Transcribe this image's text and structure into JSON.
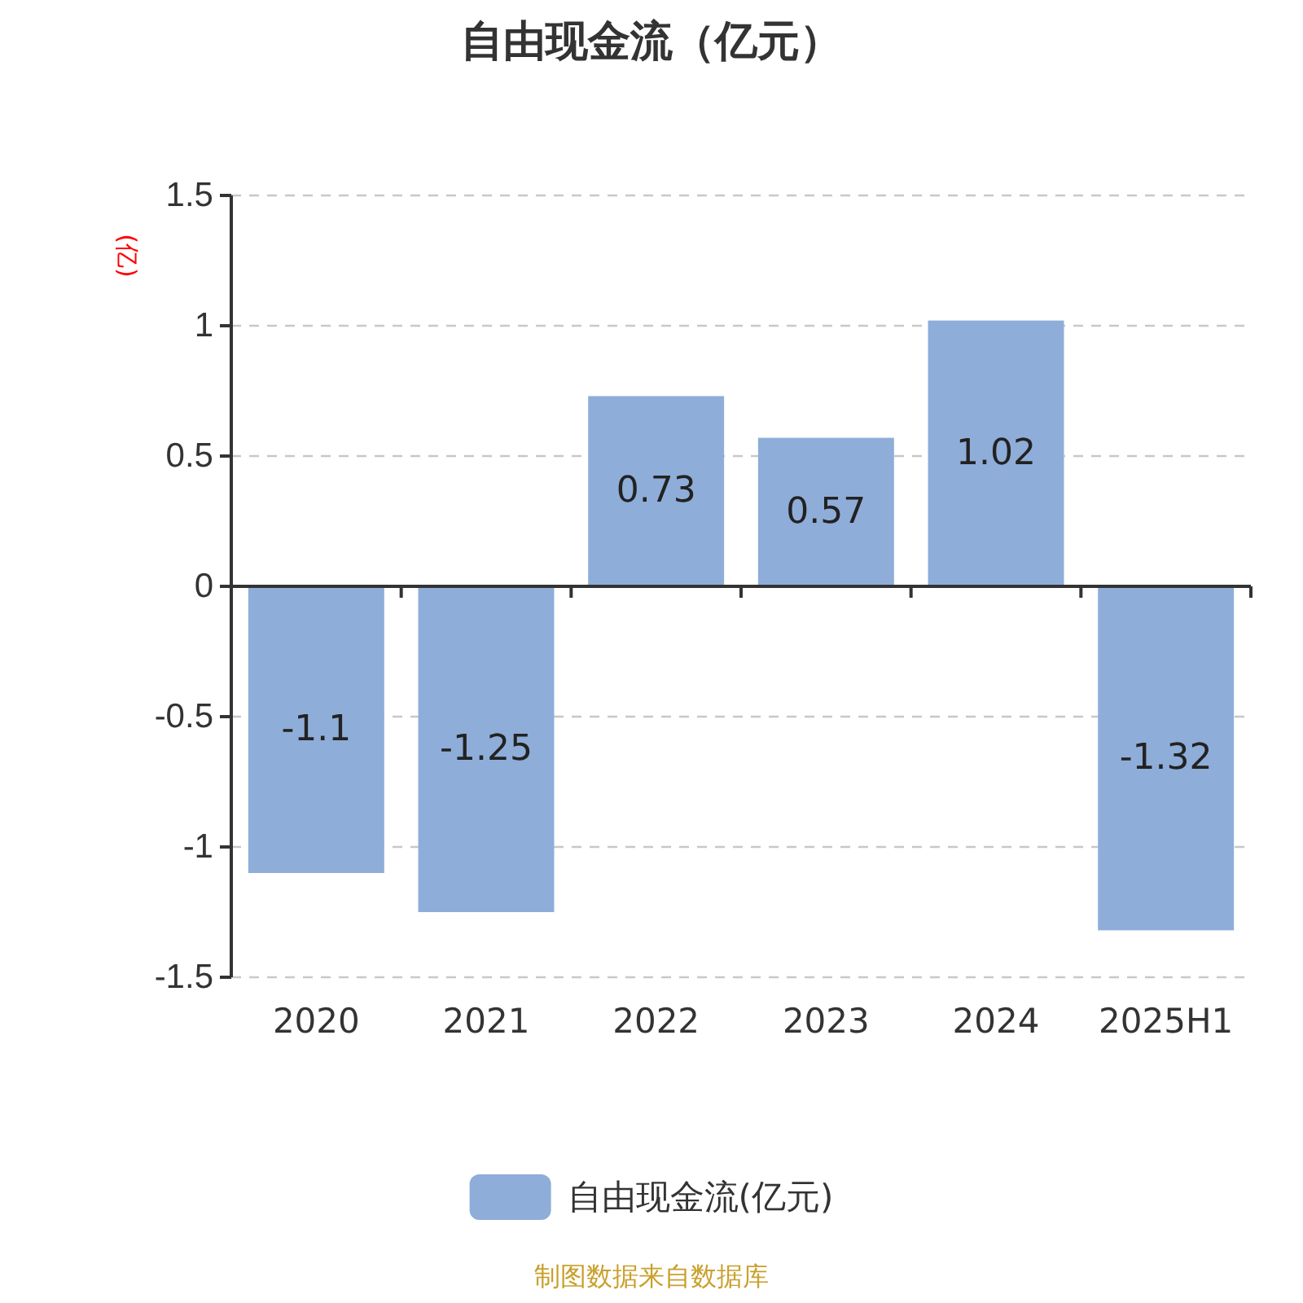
{
  "chart_data": {
    "type": "bar",
    "title": "自由现金流（亿元）",
    "ylabel": "(亿)",
    "categories": [
      "2020",
      "2021",
      "2022",
      "2023",
      "2024",
      "2025H1"
    ],
    "series": [
      {
        "name": "自由现金流(亿元)",
        "color": "#8eadd9",
        "values": [
          -1.1,
          -1.25,
          0.73,
          0.57,
          1.02,
          -1.32
        ]
      }
    ],
    "ylim": [
      -1.5,
      1.5
    ],
    "yticks": [
      -1.5,
      -1,
      -0.5,
      0,
      0.5,
      1,
      1.5
    ],
    "grid": "y",
    "legend": "bottom",
    "data_labels": true,
    "annotations": [
      "制图数据来自数据库"
    ]
  }
}
